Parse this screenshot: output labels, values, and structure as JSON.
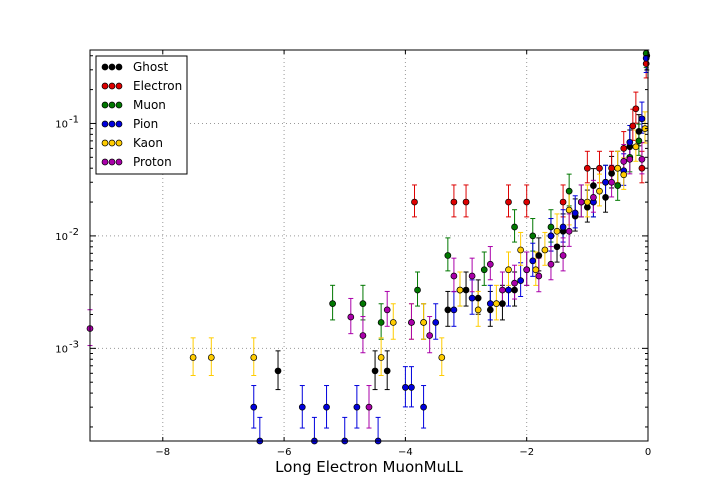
{
  "chart_data": {
    "type": "scatter",
    "title": "",
    "xlabel": "Long Electron MuonMuLL",
    "ylabel": "",
    "xlim": [
      -9.2,
      0
    ],
    "ylim": [
      0.00015,
      0.45
    ],
    "yscale": "log",
    "grid": true,
    "legend_position": "top-left",
    "x_ticks": [
      {
        "v": -8,
        "label": "−8"
      },
      {
        "v": -6,
        "label": "−6"
      },
      {
        "v": -4,
        "label": "−4"
      },
      {
        "v": -2,
        "label": "−2"
      },
      {
        "v": 0,
        "label": "0"
      }
    ],
    "y_ticks": [
      {
        "v": 0.001,
        "base": "10",
        "exp": "-3"
      },
      {
        "v": 0.01,
        "base": "10",
        "exp": "-2"
      },
      {
        "v": 0.1,
        "base": "10",
        "exp": "-1"
      }
    ],
    "series": [
      {
        "name": "Ghost",
        "color": "#000000",
        "points": [
          [
            -6.1,
            0.00063
          ],
          [
            -4.5,
            0.00063
          ],
          [
            -4.3,
            0.00063
          ],
          [
            -3.7,
            0.0017
          ],
          [
            -3.3,
            0.0022
          ],
          [
            -3.0,
            0.0033
          ],
          [
            -2.8,
            0.0028
          ],
          [
            -2.6,
            0.0022
          ],
          [
            -2.4,
            0.0025
          ],
          [
            -2.2,
            0.0033
          ],
          [
            -2.0,
            0.005
          ],
          [
            -1.8,
            0.0067
          ],
          [
            -1.6,
            0.01
          ],
          [
            -1.5,
            0.008
          ],
          [
            -1.4,
            0.011
          ],
          [
            -1.2,
            0.015
          ],
          [
            -1.0,
            0.018
          ],
          [
            -0.9,
            0.028
          ],
          [
            -0.7,
            0.022
          ],
          [
            -0.6,
            0.036
          ],
          [
            -0.5,
            0.04
          ],
          [
            -0.3,
            0.062
          ],
          [
            -0.15,
            0.085
          ],
          [
            -0.02,
            0.4
          ]
        ]
      },
      {
        "name": "Electron",
        "color": "#dd0000",
        "points": [
          [
            -3.85,
            0.02
          ],
          [
            -3.2,
            0.02
          ],
          [
            -3.0,
            0.02
          ],
          [
            -2.3,
            0.02
          ],
          [
            -2.0,
            0.02
          ],
          [
            -1.4,
            0.02
          ],
          [
            -1.0,
            0.04
          ],
          [
            -0.8,
            0.04
          ],
          [
            -0.6,
            0.04
          ],
          [
            -0.4,
            0.06
          ],
          [
            -0.25,
            0.095
          ],
          [
            -0.2,
            0.135
          ],
          [
            -0.1,
            0.04
          ],
          [
            -0.03,
            0.34
          ]
        ]
      },
      {
        "name": "Muon",
        "color": "#007700",
        "points": [
          [
            -5.2,
            0.0025
          ],
          [
            -4.7,
            0.0025
          ],
          [
            -4.4,
            0.0017
          ],
          [
            -3.8,
            0.0033
          ],
          [
            -3.3,
            0.0067
          ],
          [
            -3.1,
            0.0033
          ],
          [
            -2.7,
            0.005
          ],
          [
            -2.2,
            0.012
          ],
          [
            -1.9,
            0.01
          ],
          [
            -1.6,
            0.012
          ],
          [
            -1.3,
            0.025
          ],
          [
            -1.1,
            0.02
          ],
          [
            -0.9,
            0.02
          ],
          [
            -0.7,
            0.03
          ],
          [
            -0.5,
            0.028
          ],
          [
            -0.3,
            0.05
          ],
          [
            -0.15,
            0.07
          ],
          [
            -0.03,
            0.42
          ]
        ]
      },
      {
        "name": "Pion",
        "color": "#0000dd",
        "points": [
          [
            -6.5,
            0.0003
          ],
          [
            -6.4,
            0.00015
          ],
          [
            -5.7,
            0.0003
          ],
          [
            -5.5,
            0.00015
          ],
          [
            -5.3,
            0.0003
          ],
          [
            -5.0,
            0.00015
          ],
          [
            -4.8,
            0.0003
          ],
          [
            -4.45,
            0.00015
          ],
          [
            -4.0,
            0.00045
          ],
          [
            -3.9,
            0.00045
          ],
          [
            -3.7,
            0.0003
          ],
          [
            -3.5,
            0.0017
          ],
          [
            -3.2,
            0.0022
          ],
          [
            -2.9,
            0.0028
          ],
          [
            -2.6,
            0.0025
          ],
          [
            -2.3,
            0.0033
          ],
          [
            -2.1,
            0.004
          ],
          [
            -1.9,
            0.006
          ],
          [
            -1.6,
            0.01
          ],
          [
            -1.4,
            0.012
          ],
          [
            -1.2,
            0.016
          ],
          [
            -0.9,
            0.02
          ],
          [
            -0.7,
            0.03
          ],
          [
            -0.4,
            0.038
          ],
          [
            -0.3,
            0.068
          ],
          [
            -0.1,
            0.11
          ],
          [
            -0.03,
            0.38
          ]
        ]
      },
      {
        "name": "Kaon",
        "color": "#ffcc00",
        "points": [
          [
            -7.5,
            0.00083
          ],
          [
            -7.2,
            0.00083
          ],
          [
            -6.5,
            0.00083
          ],
          [
            -4.4,
            0.00083
          ],
          [
            -4.2,
            0.0017
          ],
          [
            -3.9,
            0.0017
          ],
          [
            -3.7,
            0.0017
          ],
          [
            -3.4,
            0.00083
          ],
          [
            -3.1,
            0.0033
          ],
          [
            -2.8,
            0.0022
          ],
          [
            -2.5,
            0.0025
          ],
          [
            -2.3,
            0.005
          ],
          [
            -2.1,
            0.0075
          ],
          [
            -1.85,
            0.005
          ],
          [
            -1.7,
            0.0075
          ],
          [
            -1.5,
            0.011
          ],
          [
            -1.3,
            0.017
          ],
          [
            -1.0,
            0.02
          ],
          [
            -0.8,
            0.025
          ],
          [
            -0.5,
            0.04
          ],
          [
            -0.4,
            0.035
          ],
          [
            -0.2,
            0.062
          ],
          [
            -0.05,
            0.09
          ]
        ]
      },
      {
        "name": "Proton",
        "color": "#aa00aa",
        "points": [
          [
            -9.2,
            0.0015
          ],
          [
            -4.9,
            0.0019
          ],
          [
            -4.7,
            0.0013
          ],
          [
            -4.6,
            0.0003
          ],
          [
            -4.3,
            0.0022
          ],
          [
            -3.9,
            0.0017
          ],
          [
            -3.6,
            0.0013
          ],
          [
            -3.2,
            0.0044
          ],
          [
            -2.9,
            0.0044
          ],
          [
            -2.6,
            0.0056
          ],
          [
            -2.4,
            0.0033
          ],
          [
            -2.2,
            0.0038
          ],
          [
            -2.0,
            0.005
          ],
          [
            -1.8,
            0.0044
          ],
          [
            -1.6,
            0.0056
          ],
          [
            -1.4,
            0.0067
          ],
          [
            -1.3,
            0.011
          ],
          [
            -1.1,
            0.02
          ],
          [
            -0.9,
            0.022
          ],
          [
            -0.6,
            0.03
          ],
          [
            -0.4,
            0.046
          ],
          [
            -0.3,
            0.048
          ],
          [
            -0.1,
            0.048
          ]
        ]
      }
    ]
  }
}
